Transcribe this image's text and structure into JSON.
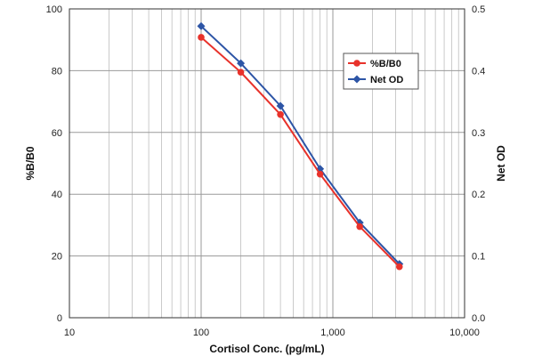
{
  "chart_data": {
    "type": "line",
    "x_scale": "log",
    "xlim": [
      10,
      10000
    ],
    "x_ticks": [
      "10",
      "100",
      "1,000",
      "10,000"
    ],
    "xlabel": "Cortisol Conc. (pg/mL)",
    "y_left": {
      "label": "%B/B0",
      "lim": [
        0,
        100
      ],
      "ticks": [
        "0",
        "20",
        "40",
        "60",
        "80",
        "100"
      ]
    },
    "y_right": {
      "label": "Net OD",
      "lim": [
        0.0,
        0.5
      ],
      "ticks": [
        "0.0",
        "0.1",
        "0.2",
        "0.3",
        "0.4",
        "0.5"
      ]
    },
    "grid": true,
    "legend_position": "top-right",
    "series": [
      {
        "name": "%B/B0",
        "axis": "left",
        "color": "#e8322b",
        "marker": "circle",
        "x": [
          100,
          200,
          400,
          800,
          1600,
          3200
        ],
        "y": [
          90.8,
          79.5,
          65.8,
          46.5,
          29.5,
          16.5
        ]
      },
      {
        "name": "Net OD",
        "axis": "right",
        "color": "#2d55a6",
        "marker": "diamond",
        "x": [
          100,
          200,
          400,
          800,
          1600,
          3200
        ],
        "y": [
          0.472,
          0.412,
          0.343,
          0.241,
          0.154,
          0.087
        ]
      }
    ]
  }
}
